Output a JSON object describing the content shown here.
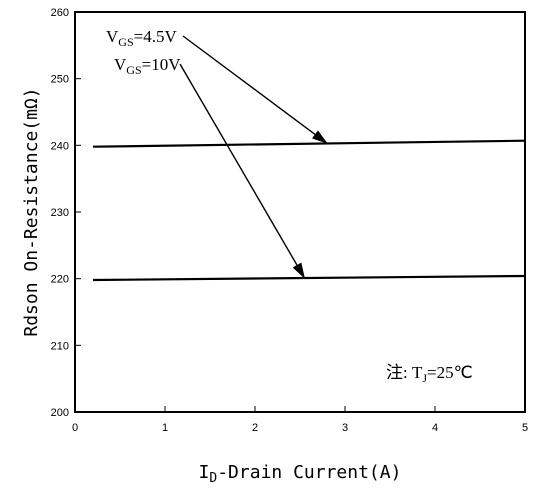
{
  "chart_data": {
    "type": "line",
    "xlabel": {
      "main": "I",
      "sub": "D",
      "rest": "-Drain Current(A)"
    },
    "ylabel": "Rdson On-Resistance(mΩ)",
    "xlim": [
      0,
      5
    ],
    "ylim": [
      200,
      260
    ],
    "xticks": [
      "0",
      "1",
      "2",
      "3",
      "4",
      "5"
    ],
    "yticks": [
      "200",
      "210",
      "220",
      "230",
      "240",
      "250",
      "260"
    ],
    "grid": false,
    "series": [
      {
        "x": [
          0.2,
          5
        ],
        "y": [
          239.8,
          240.7
        ]
      },
      {
        "x": [
          0.2,
          5
        ],
        "y": [
          219.8,
          220.4
        ]
      }
    ],
    "annotations": [
      {
        "main": "V",
        "sub": "GS",
        "rest": "=4.5V",
        "target_x": 2.8,
        "target_y": 240.3
      },
      {
        "main": "V",
        "sub": "GS",
        "rest": "=10V",
        "target_x": 2.55,
        "target_y": 220.1
      }
    ],
    "note": {
      "prefix": "注: T",
      "sub": "J",
      "rest": "=25℃"
    }
  }
}
